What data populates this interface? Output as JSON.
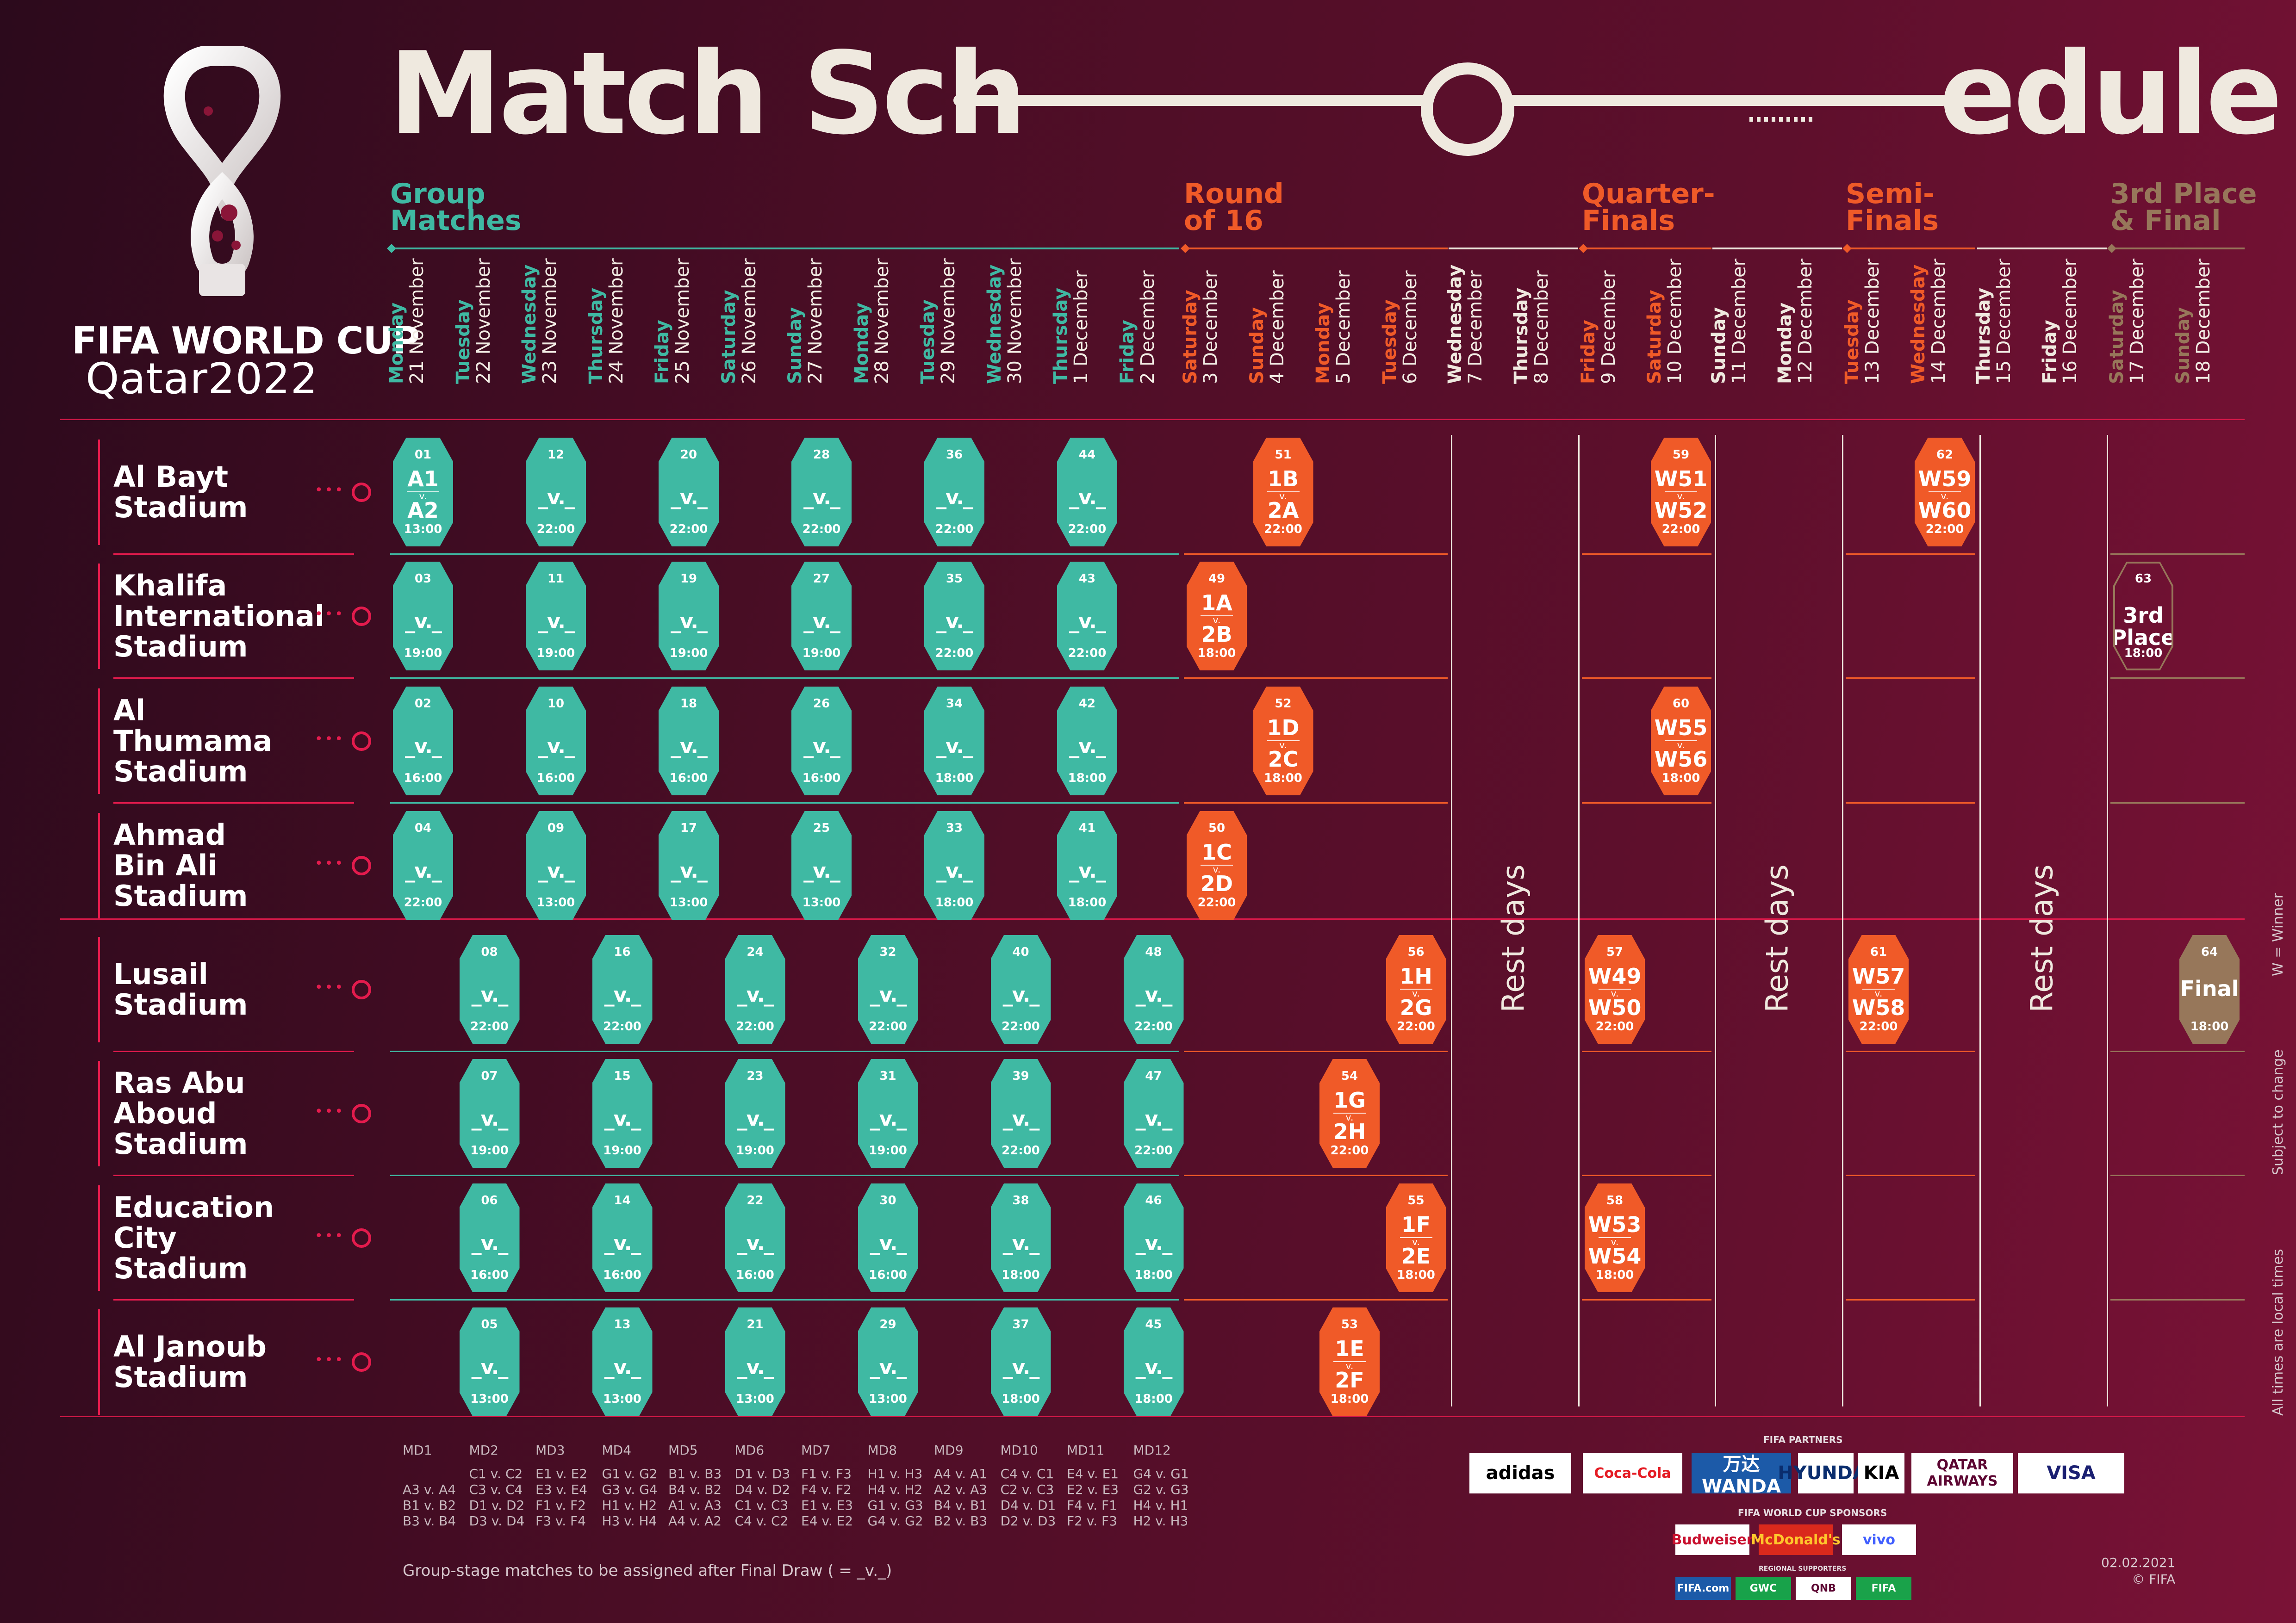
{
  "header": {
    "title_left": "Match Sch",
    "title_right": "edule"
  },
  "logo": {
    "line1": "FIFA WORLD CUP",
    "line2": "Qatar2022"
  },
  "colors": {
    "group": "#3fb9a3",
    "knockout": "#f05a28",
    "final": "#97775a",
    "accent": "#e41b4d",
    "cream": "#efe9df"
  },
  "stages": [
    {
      "label": "Group\nMatches",
      "color": "#3fb9a3"
    },
    {
      "label": "Round\nof 16",
      "color": "#f05a28"
    },
    {
      "label": "Quarter-\nFinals",
      "color": "#f05a28"
    },
    {
      "label": "Semi-\nFinals",
      "color": "#f05a28"
    },
    {
      "label": "3rd Place\n& Final",
      "color": "#97775a"
    }
  ],
  "days": [
    {
      "dow": "Monday",
      "date": "21 November",
      "color": "#3fb9a3"
    },
    {
      "dow": "Tuesday",
      "date": "22 November",
      "color": "#3fb9a3"
    },
    {
      "dow": "Wednesday",
      "date": "23 November",
      "color": "#3fb9a3"
    },
    {
      "dow": "Thursday",
      "date": "24 November",
      "color": "#3fb9a3"
    },
    {
      "dow": "Friday",
      "date": "25 November",
      "color": "#3fb9a3"
    },
    {
      "dow": "Saturday",
      "date": "26 November",
      "color": "#3fb9a3"
    },
    {
      "dow": "Sunday",
      "date": "27 November",
      "color": "#3fb9a3"
    },
    {
      "dow": "Monday",
      "date": "28 November",
      "color": "#3fb9a3"
    },
    {
      "dow": "Tuesday",
      "date": "29 November",
      "color": "#3fb9a3"
    },
    {
      "dow": "Wednesday",
      "date": "30 November",
      "color": "#3fb9a3"
    },
    {
      "dow": "Thursday",
      "date": "1 December",
      "color": "#3fb9a3"
    },
    {
      "dow": "Friday",
      "date": "2 December",
      "color": "#3fb9a3"
    },
    {
      "dow": "Saturday",
      "date": "3 December",
      "color": "#f05a28"
    },
    {
      "dow": "Sunday",
      "date": "4 December",
      "color": "#f05a28"
    },
    {
      "dow": "Monday",
      "date": "5 December",
      "color": "#f05a28"
    },
    {
      "dow": "Tuesday",
      "date": "6 December",
      "color": "#f05a28"
    },
    {
      "dow": "Wednesday",
      "date": "7 December",
      "color": "#efe9df"
    },
    {
      "dow": "Thursday",
      "date": "8 December",
      "color": "#efe9df"
    },
    {
      "dow": "Friday",
      "date": "9 December",
      "color": "#f05a28"
    },
    {
      "dow": "Saturday",
      "date": "10 December",
      "color": "#f05a28"
    },
    {
      "dow": "Sunday",
      "date": "11 December",
      "color": "#efe9df"
    },
    {
      "dow": "Monday",
      "date": "12 December",
      "color": "#efe9df"
    },
    {
      "dow": "Tuesday",
      "date": "13 December",
      "color": "#f05a28"
    },
    {
      "dow": "Wednesday",
      "date": "14 December",
      "color": "#f05a28"
    },
    {
      "dow": "Thursday",
      "date": "15 December",
      "color": "#efe9df"
    },
    {
      "dow": "Friday",
      "date": "16 December",
      "color": "#efe9df"
    },
    {
      "dow": "Saturday",
      "date": "17 December",
      "color": "#97775a"
    },
    {
      "dow": "Sunday",
      "date": "18 December",
      "color": "#97775a"
    }
  ],
  "stadiums": [
    "Al Bayt\nStadium",
    "Khalifa\nInternational\nStadium",
    "Al\nThumama\nStadium",
    "Ahmad\nBin Ali\nStadium",
    "Lusail\nStadium",
    "Ras Abu\nAboud\nStadium",
    "Education\nCity\nStadium",
    "Al Janoub\nStadium"
  ],
  "matches": [
    {
      "num": "01",
      "row": 0,
      "day": 0,
      "t1": "A1",
      "t2": "A2",
      "time": "13:00",
      "kind": "group"
    },
    {
      "num": "12",
      "row": 0,
      "day": 2,
      "tbd": "_v._",
      "time": "22:00",
      "kind": "group"
    },
    {
      "num": "20",
      "row": 0,
      "day": 4,
      "tbd": "_v._",
      "time": "22:00",
      "kind": "group"
    },
    {
      "num": "28",
      "row": 0,
      "day": 6,
      "tbd": "_v._",
      "time": "22:00",
      "kind": "group"
    },
    {
      "num": "36",
      "row": 0,
      "day": 8,
      "tbd": "_v._",
      "time": "22:00",
      "kind": "group"
    },
    {
      "num": "44",
      "row": 0,
      "day": 10,
      "tbd": "_v._",
      "time": "22:00",
      "kind": "group"
    },
    {
      "num": "51",
      "row": 0,
      "day": 13,
      "t1": "1B",
      "t2": "2A",
      "time": "22:00",
      "kind": "ko"
    },
    {
      "num": "59",
      "row": 0,
      "day": 19,
      "t1": "W51",
      "t2": "W52",
      "time": "22:00",
      "kind": "ko"
    },
    {
      "num": "62",
      "row": 0,
      "day": 23,
      "t1": "W59",
      "t2": "W60",
      "time": "22:00",
      "kind": "ko"
    },
    {
      "num": "03",
      "row": 1,
      "day": 0,
      "tbd": "_v._",
      "time": "19:00",
      "kind": "group"
    },
    {
      "num": "11",
      "row": 1,
      "day": 2,
      "tbd": "_v._",
      "time": "19:00",
      "kind": "group"
    },
    {
      "num": "19",
      "row": 1,
      "day": 4,
      "tbd": "_v._",
      "time": "19:00",
      "kind": "group"
    },
    {
      "num": "27",
      "row": 1,
      "day": 6,
      "tbd": "_v._",
      "time": "19:00",
      "kind": "group"
    },
    {
      "num": "35",
      "row": 1,
      "day": 8,
      "tbd": "_v._",
      "time": "22:00",
      "kind": "group"
    },
    {
      "num": "43",
      "row": 1,
      "day": 10,
      "tbd": "_v._",
      "time": "22:00",
      "kind": "group"
    },
    {
      "num": "49",
      "row": 1,
      "day": 12,
      "t1": "1A",
      "t2": "2B",
      "time": "18:00",
      "kind": "ko"
    },
    {
      "num": "63",
      "row": 1,
      "day": 26,
      "single": "3rd\nPlace",
      "time": "18:00",
      "kind": "third"
    },
    {
      "num": "02",
      "row": 2,
      "day": 0,
      "tbd": "_v._",
      "time": "16:00",
      "kind": "group"
    },
    {
      "num": "10",
      "row": 2,
      "day": 2,
      "tbd": "_v._",
      "time": "16:00",
      "kind": "group"
    },
    {
      "num": "18",
      "row": 2,
      "day": 4,
      "tbd": "_v._",
      "time": "16:00",
      "kind": "group"
    },
    {
      "num": "26",
      "row": 2,
      "day": 6,
      "tbd": "_v._",
      "time": "16:00",
      "kind": "group"
    },
    {
      "num": "34",
      "row": 2,
      "day": 8,
      "tbd": "_v._",
      "time": "18:00",
      "kind": "group"
    },
    {
      "num": "42",
      "row": 2,
      "day": 10,
      "tbd": "_v._",
      "time": "18:00",
      "kind": "group"
    },
    {
      "num": "52",
      "row": 2,
      "day": 13,
      "t1": "1D",
      "t2": "2C",
      "time": "18:00",
      "kind": "ko"
    },
    {
      "num": "60",
      "row": 2,
      "day": 19,
      "t1": "W55",
      "t2": "W56",
      "time": "18:00",
      "kind": "ko"
    },
    {
      "num": "04",
      "row": 3,
      "day": 0,
      "tbd": "_v._",
      "time": "22:00",
      "kind": "group"
    },
    {
      "num": "09",
      "row": 3,
      "day": 2,
      "tbd": "_v._",
      "time": "13:00",
      "kind": "group"
    },
    {
      "num": "17",
      "row": 3,
      "day": 4,
      "tbd": "_v._",
      "time": "13:00",
      "kind": "group"
    },
    {
      "num": "25",
      "row": 3,
      "day": 6,
      "tbd": "_v._",
      "time": "13:00",
      "kind": "group"
    },
    {
      "num": "33",
      "row": 3,
      "day": 8,
      "tbd": "_v._",
      "time": "18:00",
      "kind": "group"
    },
    {
      "num": "41",
      "row": 3,
      "day": 10,
      "tbd": "_v._",
      "time": "18:00",
      "kind": "group"
    },
    {
      "num": "50",
      "row": 3,
      "day": 12,
      "t1": "1C",
      "t2": "2D",
      "time": "22:00",
      "kind": "ko"
    },
    {
      "num": "08",
      "row": 4,
      "day": 1,
      "tbd": "_v._",
      "time": "22:00",
      "kind": "group"
    },
    {
      "num": "16",
      "row": 4,
      "day": 3,
      "tbd": "_v._",
      "time": "22:00",
      "kind": "group"
    },
    {
      "num": "24",
      "row": 4,
      "day": 5,
      "tbd": "_v._",
      "time": "22:00",
      "kind": "group"
    },
    {
      "num": "32",
      "row": 4,
      "day": 7,
      "tbd": "_v._",
      "time": "22:00",
      "kind": "group"
    },
    {
      "num": "40",
      "row": 4,
      "day": 9,
      "tbd": "_v._",
      "time": "22:00",
      "kind": "group"
    },
    {
      "num": "48",
      "row": 4,
      "day": 11,
      "tbd": "_v._",
      "time": "22:00",
      "kind": "group"
    },
    {
      "num": "56",
      "row": 4,
      "day": 15,
      "t1": "1H",
      "t2": "2G",
      "time": "22:00",
      "kind": "ko"
    },
    {
      "num": "57",
      "row": 4,
      "day": 18,
      "t1": "W49",
      "t2": "W50",
      "time": "22:00",
      "kind": "ko"
    },
    {
      "num": "61",
      "row": 4,
      "day": 22,
      "t1": "W57",
      "t2": "W58",
      "time": "22:00",
      "kind": "ko"
    },
    {
      "num": "64",
      "row": 4,
      "day": 27,
      "single": "Final",
      "time": "18:00",
      "kind": "final"
    },
    {
      "num": "07",
      "row": 5,
      "day": 1,
      "tbd": "_v._",
      "time": "19:00",
      "kind": "group"
    },
    {
      "num": "15",
      "row": 5,
      "day": 3,
      "tbd": "_v._",
      "time": "19:00",
      "kind": "group"
    },
    {
      "num": "23",
      "row": 5,
      "day": 5,
      "tbd": "_v._",
      "time": "19:00",
      "kind": "group"
    },
    {
      "num": "31",
      "row": 5,
      "day": 7,
      "tbd": "_v._",
      "time": "19:00",
      "kind": "group"
    },
    {
      "num": "39",
      "row": 5,
      "day": 9,
      "tbd": "_v._",
      "time": "22:00",
      "kind": "group"
    },
    {
      "num": "47",
      "row": 5,
      "day": 11,
      "tbd": "_v._",
      "time": "22:00",
      "kind": "group"
    },
    {
      "num": "54",
      "row": 5,
      "day": 14,
      "t1": "1G",
      "t2": "2H",
      "time": "22:00",
      "kind": "ko"
    },
    {
      "num": "06",
      "row": 6,
      "day": 1,
      "tbd": "_v._",
      "time": "16:00",
      "kind": "group"
    },
    {
      "num": "14",
      "row": 6,
      "day": 3,
      "tbd": "_v._",
      "time": "16:00",
      "kind": "group"
    },
    {
      "num": "22",
      "row": 6,
      "day": 5,
      "tbd": "_v._",
      "time": "16:00",
      "kind": "group"
    },
    {
      "num": "30",
      "row": 6,
      "day": 7,
      "tbd": "_v._",
      "time": "16:00",
      "kind": "group"
    },
    {
      "num": "38",
      "row": 6,
      "day": 9,
      "tbd": "_v._",
      "time": "18:00",
      "kind": "group"
    },
    {
      "num": "46",
      "row": 6,
      "day": 11,
      "tbd": "_v._",
      "time": "18:00",
      "kind": "group"
    },
    {
      "num": "55",
      "row": 6,
      "day": 15,
      "t1": "1F",
      "t2": "2E",
      "time": "18:00",
      "kind": "ko"
    },
    {
      "num": "58",
      "row": 6,
      "day": 18,
      "t1": "W53",
      "t2": "W54",
      "time": "18:00",
      "kind": "ko"
    },
    {
      "num": "05",
      "row": 7,
      "day": 1,
      "tbd": "_v._",
      "time": "13:00",
      "kind": "group"
    },
    {
      "num": "13",
      "row": 7,
      "day": 3,
      "tbd": "_v._",
      "time": "13:00",
      "kind": "group"
    },
    {
      "num": "21",
      "row": 7,
      "day": 5,
      "tbd": "_v._",
      "time": "13:00",
      "kind": "group"
    },
    {
      "num": "29",
      "row": 7,
      "day": 7,
      "tbd": "_v._",
      "time": "13:00",
      "kind": "group"
    },
    {
      "num": "37",
      "row": 7,
      "day": 9,
      "tbd": "_v._",
      "time": "18:00",
      "kind": "group"
    },
    {
      "num": "45",
      "row": 7,
      "day": 11,
      "tbd": "_v._",
      "time": "18:00",
      "kind": "group"
    },
    {
      "num": "53",
      "row": 7,
      "day": 14,
      "t1": "1E",
      "t2": "2F",
      "time": "18:00",
      "kind": "ko"
    }
  ],
  "rest_days_label": "Rest days",
  "matchdays": [
    {
      "md": "MD1",
      "lines": [
        "",
        "A3 v. A4",
        "B1 v. B2",
        "B3 v. B4"
      ]
    },
    {
      "md": "MD2",
      "lines": [
        "C1 v. C2",
        "C3 v. C4",
        "D1 v. D2",
        "D3 v. D4"
      ]
    },
    {
      "md": "MD3",
      "lines": [
        "E1 v. E2",
        "E3 v. E4",
        "F1 v. F2",
        "F3 v. F4"
      ]
    },
    {
      "md": "MD4",
      "lines": [
        "G1 v. G2",
        "G3 v. G4",
        "H1 v. H2",
        "H3 v. H4"
      ]
    },
    {
      "md": "MD5",
      "lines": [
        "B1 v. B3",
        "B4 v. B2",
        "A1 v. A3",
        "A4 v. A2"
      ]
    },
    {
      "md": "MD6",
      "lines": [
        "D1 v. D3",
        "D4 v. D2",
        "C1 v. C3",
        "C4 v. C2"
      ]
    },
    {
      "md": "MD7",
      "lines": [
        "F1 v. F3",
        "F4 v. F2",
        "E1 v. E3",
        "E4 v. E2"
      ]
    },
    {
      "md": "MD8",
      "lines": [
        "H1 v. H3",
        "H4 v. H2",
        "G1 v. G3",
        "G4 v. G2"
      ]
    },
    {
      "md": "MD9",
      "lines": [
        "A4 v. A1",
        "A2 v. A3",
        "B4 v. B1",
        "B2 v. B3"
      ]
    },
    {
      "md": "MD10",
      "lines": [
        "C4 v. C1",
        "C2 v. C3",
        "D4 v. D1",
        "D2 v. D3"
      ]
    },
    {
      "md": "MD11",
      "lines": [
        "E4 v. E1",
        "E2 v. E3",
        "F4 v. F1",
        "F2 v. F3"
      ]
    },
    {
      "md": "MD12",
      "lines": [
        "G4 v. G1",
        "G2 v. G3",
        "H4 v. H1",
        "H2 v. H3"
      ]
    }
  ],
  "footnote": "Group-stage matches to be assigned after Final Draw ( = _v._)",
  "side_notes": {
    "winner": "W = Winner",
    "subject": "Subject to change",
    "local": "All times are local times"
  },
  "sponsors": {
    "partners_label": "FIFA PARTNERS",
    "partners": [
      "adidas",
      "Coca-Cola",
      "万达 WANDA",
      "HYUNDAI",
      "KIA",
      "QATAR AIRWAYS",
      "VISA"
    ],
    "wc_label": "FIFA WORLD CUP SPONSORS",
    "wc": [
      "Budweiser",
      "McDonald's",
      "vivo"
    ],
    "regional_label": "REGIONAL SUPPORTERS",
    "regional": [
      "FIFA.com",
      "GWC",
      "QNB",
      "FIFA"
    ]
  },
  "date_stamp": {
    "date": "02.02.2021",
    "copyright": "© FIFA"
  }
}
